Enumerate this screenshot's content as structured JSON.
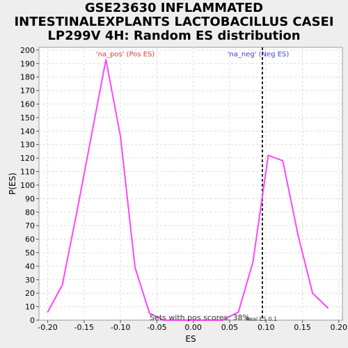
{
  "title_lines": [
    "GSE23630 INFLAMMATED",
    "INTESTINALEXPLANTS LACTOBACILLUS CASEI",
    "LP299V 4H: Random ES distribution"
  ],
  "colors": {
    "series": "#ff44ff",
    "pos_label": "#d24040",
    "neg_label": "#4040d2",
    "grid": "#dcdcdc",
    "background": "#ffffff"
  },
  "chart_data": {
    "type": "line",
    "xlabel": "ES",
    "ylabel": "P(ES)",
    "xlim": [
      -0.212,
      0.205
    ],
    "ylim": [
      0,
      202
    ],
    "grid": true,
    "x_ticks": [
      -0.2,
      -0.15,
      -0.1,
      -0.05,
      0.0,
      0.05,
      0.1,
      0.15,
      0.2
    ],
    "x_tick_labels": [
      "-0.20",
      "-0.15",
      "-0.10",
      "-0.05",
      "0.00",
      "0.05",
      "0.10",
      "0.15",
      "0.20"
    ],
    "y_ticks": [
      0,
      10,
      20,
      30,
      40,
      50,
      60,
      70,
      80,
      90,
      100,
      110,
      120,
      130,
      140,
      150,
      160,
      170,
      180,
      190,
      200
    ],
    "series": [
      {
        "x": [
          -0.2,
          -0.18,
          -0.16,
          -0.12,
          -0.1,
          -0.08,
          -0.06,
          -0.04,
          -0.02,
          0.0,
          0.02,
          0.04,
          0.062,
          0.082,
          0.103,
          0.123,
          0.144,
          0.164,
          0.185
        ],
        "y": [
          6,
          26,
          80,
          193,
          136,
          39,
          5,
          0,
          0,
          0,
          0,
          0,
          6,
          43,
          122,
          118,
          63,
          20,
          9
        ]
      }
    ],
    "real_es": 0.095,
    "annotations": {
      "pos_label": "'na_pos' (Pos ES)",
      "neg_label": "'na_neg' (Neg ES)",
      "pos_scores_text": "Sets with pos scores: 38%",
      "real_es_text": "Real ES 0.1"
    }
  }
}
